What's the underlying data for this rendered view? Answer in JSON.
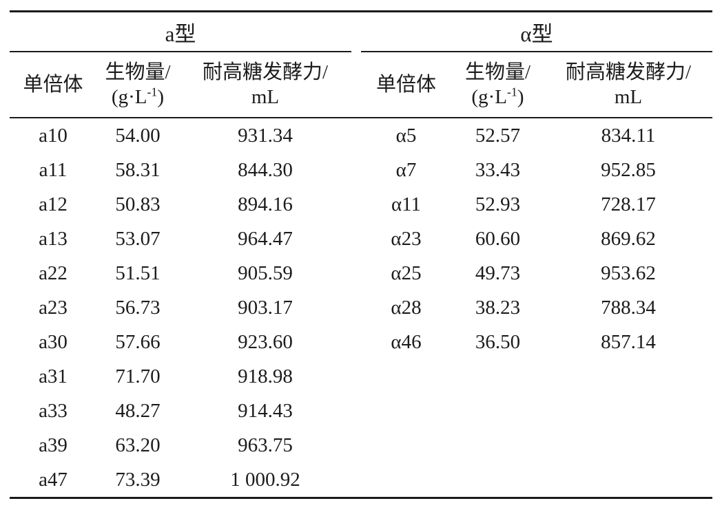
{
  "table": {
    "sections": [
      {
        "title": "a型",
        "columns": {
          "haploid": "单倍体",
          "biomass_line1": "生物量/",
          "biomass_unit_prefix": "(g·L",
          "biomass_unit_sup": "-1",
          "biomass_unit_suffix": ")",
          "ferment_line1": "耐高糖发酵力/",
          "ferment_line2": "mL"
        },
        "rows": [
          [
            "a10",
            "54.00",
            "931.34"
          ],
          [
            "a11",
            "58.31",
            "844.30"
          ],
          [
            "a12",
            "50.83",
            "894.16"
          ],
          [
            "a13",
            "53.07",
            "964.47"
          ],
          [
            "a22",
            "51.51",
            "905.59"
          ],
          [
            "a23",
            "56.73",
            "903.17"
          ],
          [
            "a30",
            "57.66",
            "923.60"
          ],
          [
            "a31",
            "71.70",
            "918.98"
          ],
          [
            "a33",
            "48.27",
            "914.43"
          ],
          [
            "a39",
            "63.20",
            "963.75"
          ],
          [
            "a47",
            "73.39",
            "1 000.92"
          ]
        ]
      },
      {
        "title": "α型",
        "columns": {
          "haploid": "单倍体",
          "biomass_line1": "生物量/",
          "biomass_unit_prefix": "(g·L",
          "biomass_unit_sup": "-1",
          "biomass_unit_suffix": ")",
          "ferment_line1": "耐高糖发酵力/",
          "ferment_line2": "mL"
        },
        "rows": [
          [
            "α5",
            "52.57",
            "834.11"
          ],
          [
            "α7",
            "33.43",
            "952.85"
          ],
          [
            "α11",
            "52.93",
            "728.17"
          ],
          [
            "α23",
            "60.60",
            "869.62"
          ],
          [
            "α25",
            "49.73",
            "953.62"
          ],
          [
            "α28",
            "38.23",
            "788.34"
          ],
          [
            "α46",
            "36.50",
            "857.14"
          ]
        ]
      }
    ]
  }
}
